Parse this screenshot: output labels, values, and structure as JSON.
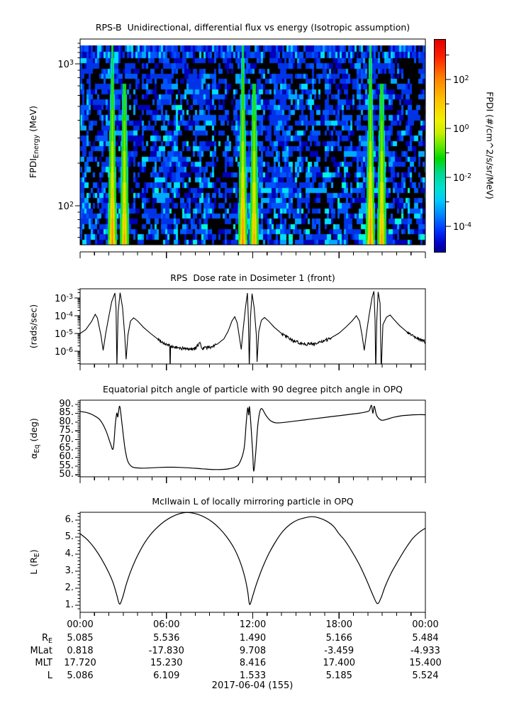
{
  "figure": {
    "bg": "#ffffff",
    "date_label": "2017-06-04 (155)",
    "time_ticks": [
      "00:00",
      "06:00",
      "12:00",
      "18:00",
      "00:00"
    ]
  },
  "ephemeris": {
    "rows": [
      {
        "label": "R_{E}",
        "values": [
          "5.085",
          "5.536",
          "1.490",
          "5.166",
          "5.484"
        ]
      },
      {
        "label": "MLat",
        "values": [
          "0.818",
          "-17.830",
          "9.708",
          "-3.459",
          "-4.933"
        ]
      },
      {
        "label": "MLT",
        "values": [
          "17.720",
          "15.230",
          "8.416",
          "17.400",
          "15.400"
        ]
      },
      {
        "label": "L",
        "values": [
          "5.086",
          "6.109",
          "1.533",
          "5.185",
          "5.524"
        ]
      }
    ]
  },
  "chart_data": [
    {
      "type": "heatmap",
      "title": "RPS-B  Unidirectional, differential flux vs energy (Isotropic assumption)",
      "ylabel": "FPDI_{Energy} (MeV)",
      "xlabel": "",
      "x_hours_range": [
        0,
        24
      ],
      "energy_range_mev": [
        53,
        1496
      ],
      "yticks": [
        {
          "v": 1000,
          "label": "10^{3}"
        },
        {
          "v": 100,
          "label": "10^{2}"
        }
      ],
      "time_tick_hours": {
        "minor": 1,
        "major": 6
      },
      "description": "Proton differential-flux spectrogram: mosaic of black/blue/cyan low-flux pixels with bright green-yellow-orange flux columns flaring downward at the three perigee passes; solid blue band at top energies under a white no-data strip",
      "perigee_hours": [
        2.74,
        11.78,
        20.65
      ],
      "flare_offsets_hours": [
        -0.5,
        0.3
      ],
      "palette": {
        "background": "#000000",
        "blues": [
          "#0000b8",
          "#0033e8",
          "#0055ff",
          "#00aaff",
          "#00e0ff",
          "#00ffd0"
        ],
        "top_strip": "#ffffff"
      },
      "colorbar": {
        "label": "FPDI (#/cm^2/s/sr/MeV)",
        "ticks": [
          {
            "exp": 2,
            "label": "10^{2}"
          },
          {
            "exp": 0,
            "label": "10^{0}"
          },
          {
            "exp": -2,
            "label": "10^{-2}"
          },
          {
            "exp": -4,
            "label": "10^{-4}"
          }
        ],
        "minor_exps": [
          3,
          1,
          -1,
          -3
        ],
        "range_exp": [
          -5,
          3.65
        ],
        "gradient": [
          {
            "pos": 0.0,
            "color": "#e00000"
          },
          {
            "pos": 0.08,
            "color": "#ff2000"
          },
          {
            "pos": 0.18,
            "color": "#ff8000"
          },
          {
            "pos": 0.28,
            "color": "#ffc000"
          },
          {
            "pos": 0.38,
            "color": "#f0f000"
          },
          {
            "pos": 0.44,
            "color": "#c8f000"
          },
          {
            "pos": 0.5,
            "color": "#64e800"
          },
          {
            "pos": 0.56,
            "color": "#00d800"
          },
          {
            "pos": 0.63,
            "color": "#00d890"
          },
          {
            "pos": 0.7,
            "color": "#00e0d0"
          },
          {
            "pos": 0.76,
            "color": "#00c8ff"
          },
          {
            "pos": 0.83,
            "color": "#0080ff"
          },
          {
            "pos": 0.9,
            "color": "#0030ff"
          },
          {
            "pos": 0.96,
            "color": "#0000c8"
          },
          {
            "pos": 1.0,
            "color": "#000090"
          }
        ]
      }
    },
    {
      "type": "line",
      "title": "RPS  Dose rate in Dosimeter 1 (front)",
      "ylabel": "(rads/sec)",
      "yscale": "log",
      "ylim_log10": [
        -6.72,
        -2.48
      ],
      "yticks": [
        {
          "v": -3,
          "label": "10^{-3}"
        },
        {
          "v": -4,
          "label": "10^{-4}"
        },
        {
          "v": -5,
          "label": "10^{-5}"
        },
        {
          "v": -6,
          "label": "10^{-6}"
        }
      ],
      "noisy_hour_ranges": [
        [
          5.2,
          9.9
        ],
        [
          13.9,
          17.6
        ],
        [
          22.6,
          24.0
        ]
      ],
      "x_hours": [
        0,
        0.4,
        0.8,
        1.05,
        1.2,
        1.45,
        1.6,
        1.78,
        1.98,
        2.2,
        2.42,
        2.5,
        2.56,
        2.64,
        2.78,
        2.95,
        3.1,
        3.2,
        3.32,
        3.5,
        3.72,
        4.0,
        4.4,
        4.9,
        5.4,
        5.9,
        6.23,
        6.26,
        6.29,
        6.8,
        7.4,
        8.0,
        8.33,
        8.45,
        9.0,
        9.5,
        10.0,
        10.3,
        10.55,
        10.75,
        10.92,
        11.1,
        11.2,
        11.33,
        11.5,
        11.63,
        11.7,
        11.76,
        11.84,
        11.95,
        12.1,
        12.25,
        12.3,
        12.42,
        12.6,
        12.82,
        13.1,
        13.5,
        14.0,
        14.5,
        15.0,
        15.5,
        16.0,
        16.5,
        17.0,
        17.5,
        18.0,
        18.5,
        18.9,
        19.2,
        19.42,
        19.6,
        19.75,
        19.92,
        20.1,
        20.3,
        20.42,
        20.5,
        20.55,
        20.62,
        20.72,
        20.85,
        20.93,
        21.05,
        21.3,
        21.55,
        21.8,
        22.2,
        22.7,
        23.2,
        23.7,
        24
      ],
      "log10_rads_per_sec": [
        -5.0,
        -4.78,
        -4.32,
        -3.92,
        -4.12,
        -5.1,
        -5.95,
        -5.0,
        -4.1,
        -3.2,
        -2.72,
        -3.6,
        -6.9,
        -3.8,
        -2.7,
        -3.55,
        -5.1,
        -6.45,
        -5.1,
        -4.3,
        -4.12,
        -4.3,
        -4.65,
        -5.0,
        -5.32,
        -5.58,
        -5.7,
        -7.2,
        -5.72,
        -5.82,
        -5.87,
        -5.86,
        -5.5,
        -5.84,
        -5.78,
        -5.62,
        -5.3,
        -4.85,
        -4.3,
        -4.05,
        -4.4,
        -5.35,
        -5.9,
        -4.8,
        -3.5,
        -2.72,
        -4.3,
        -6.9,
        -4.1,
        -2.75,
        -3.55,
        -5.1,
        -6.6,
        -4.9,
        -4.25,
        -4.1,
        -4.3,
        -4.65,
        -5.0,
        -5.28,
        -5.48,
        -5.58,
        -5.6,
        -5.55,
        -5.42,
        -5.22,
        -4.98,
        -4.62,
        -4.3,
        -4.0,
        -4.3,
        -5.1,
        -5.95,
        -4.9,
        -3.9,
        -2.95,
        -2.62,
        -4.2,
        -7.2,
        -4.3,
        -2.66,
        -3.3,
        -7.2,
        -4.5,
        -4.08,
        -3.96,
        -4.2,
        -4.55,
        -4.9,
        -5.15,
        -5.35,
        -5.5
      ]
    },
    {
      "type": "line",
      "title": "Equatorial pitch angle of particle with 90 degree pitch angle in OPQ",
      "ylabel": "α_{Eq} (deg)",
      "ylim_deg": [
        48.9,
        92.4
      ],
      "yticks_deg": [
        90,
        85,
        80,
        75,
        70,
        65,
        60,
        55,
        50
      ],
      "ytick_suffix": ".",
      "x_hours": [
        0,
        0.5,
        1.0,
        1.4,
        1.8,
        2.1,
        2.3,
        2.45,
        2.55,
        2.62,
        2.75,
        2.9,
        3.1,
        3.3,
        3.6,
        4.0,
        4.5,
        5.0,
        5.5,
        6.0,
        6.5,
        7.0,
        7.5,
        8.0,
        8.5,
        9.0,
        9.5,
        10.0,
        10.4,
        10.8,
        11.1,
        11.4,
        11.55,
        11.65,
        11.72,
        11.78,
        11.9,
        12.0,
        12.07,
        12.2,
        12.35,
        12.5,
        12.65,
        12.9,
        13.2,
        13.5,
        13.8,
        14.2,
        15,
        16,
        17,
        18,
        19,
        19.6,
        19.9,
        20.1,
        20.25,
        20.35,
        20.45,
        20.6,
        20.8,
        21.0,
        21.3,
        21.8,
        22.3,
        23,
        23.6,
        24
      ],
      "alpha_eq_deg": [
        86,
        85.3,
        83.5,
        81,
        75,
        68,
        65,
        79,
        85,
        83,
        89,
        80,
        66,
        58,
        54.6,
        53.9,
        53.8,
        54.0,
        54.2,
        54.3,
        54.3,
        54.2,
        54.0,
        53.7,
        53.4,
        53.1,
        53.0,
        53.1,
        53.5,
        54.5,
        57,
        65,
        80,
        88,
        84,
        88.5,
        75,
        62,
        52,
        62,
        78,
        86,
        87.5,
        84,
        81,
        79.7,
        79.5,
        79.8,
        80.6,
        81.6,
        82.6,
        83.6,
        84.6,
        85.3,
        85.8,
        86.5,
        89.5,
        85,
        89,
        84,
        81.7,
        81.0,
        81.5,
        82.7,
        83.5,
        84,
        84.2,
        84.1
      ]
    },
    {
      "type": "line",
      "title": "McIlwain L of locally mirroring particle in OPQ",
      "ylabel": "L (R_{E})",
      "ylim": [
        0.58,
        6.46
      ],
      "yticks": [
        6,
        5,
        4,
        3,
        2,
        1
      ],
      "ytick_suffix": ".",
      "x_hours": [
        0,
        0.5,
        1.0,
        1.5,
        2.0,
        2.3,
        2.55,
        2.74,
        2.95,
        3.2,
        3.5,
        3.9,
        4.4,
        4.9,
        5.4,
        5.9,
        6.4,
        6.9,
        7.3,
        7.7,
        8.2,
        8.7,
        9.2,
        9.7,
        10.2,
        10.7,
        11.1,
        11.45,
        11.65,
        11.78,
        11.95,
        12.0,
        12.3,
        12.7,
        13.1,
        13.6,
        14.1,
        14.6,
        15.1,
        15.6,
        16.1,
        16.6,
        17.1,
        17.6,
        18.0,
        18.4,
        18.9,
        19.4,
        19.9,
        20.3,
        20.65,
        20.9,
        21.2,
        21.6,
        22.1,
        22.6,
        23.1,
        23.6,
        24
      ],
      "l_shell": [
        5.2,
        4.85,
        4.35,
        3.7,
        2.9,
        2.3,
        1.6,
        1.07,
        1.45,
        2.2,
        2.95,
        3.75,
        4.55,
        5.15,
        5.6,
        5.95,
        6.2,
        6.37,
        6.44,
        6.43,
        6.33,
        6.15,
        5.88,
        5.5,
        5.0,
        4.35,
        3.6,
        2.65,
        1.8,
        1.05,
        1.4,
        1.55,
        2.35,
        3.25,
        4.0,
        4.75,
        5.35,
        5.75,
        6.0,
        6.13,
        6.2,
        6.13,
        5.95,
        5.65,
        5.19,
        4.8,
        4.15,
        3.4,
        2.5,
        1.7,
        1.1,
        1.4,
        2.1,
        2.85,
        3.6,
        4.3,
        4.9,
        5.3,
        5.52
      ]
    }
  ]
}
